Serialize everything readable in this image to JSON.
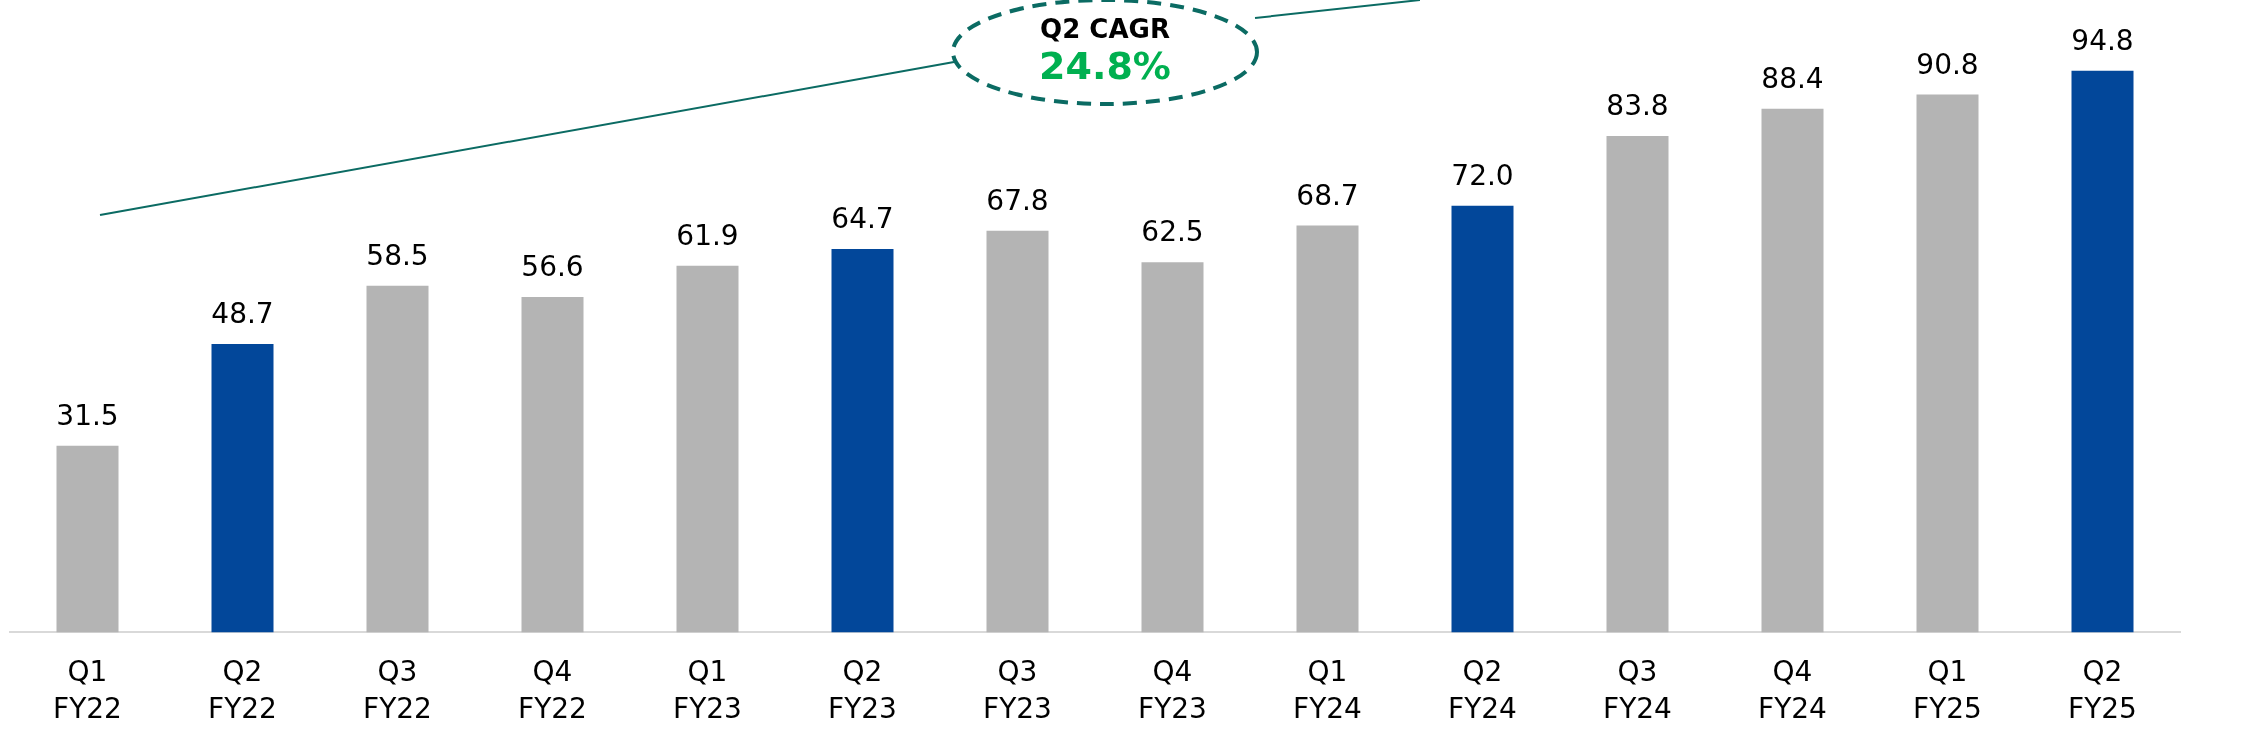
{
  "chart_data": {
    "type": "bar",
    "categories": [
      "Q1 FY22",
      "Q2 FY22",
      "Q3 FY22",
      "Q4 FY22",
      "Q1 FY23",
      "Q2 FY23",
      "Q3 FY23",
      "Q4 FY23",
      "Q1 FY24",
      "Q2 FY24",
      "Q3 FY24",
      "Q4 FY24",
      "Q1 FY25",
      "Q2 FY25"
    ],
    "values": [
      31.5,
      48.7,
      58.5,
      56.6,
      61.9,
      64.7,
      67.8,
      62.5,
      68.7,
      72.0,
      83.8,
      88.4,
      90.8,
      94.8
    ],
    "colors": [
      "#b4b4b4",
      "#02479a",
      "#b4b4b4",
      "#b4b4b4",
      "#b4b4b4",
      "#02479a",
      "#b4b4b4",
      "#b4b4b4",
      "#b4b4b4",
      "#02479a",
      "#b4b4b4",
      "#b4b4b4",
      "#b4b4b4",
      "#02479a"
    ],
    "value_labels": [
      "31.5",
      "48.7",
      "58.5",
      "56.6",
      "61.9",
      "64.7",
      "67.8",
      "62.5",
      "68.7",
      "72.0",
      "83.8",
      "88.4",
      "90.8",
      "94.8"
    ],
    "tick_labels": "x",
    "grid": false,
    "legend": false,
    "annotations": [
      "Q2 CAGR",
      "24.8%"
    ]
  }
}
